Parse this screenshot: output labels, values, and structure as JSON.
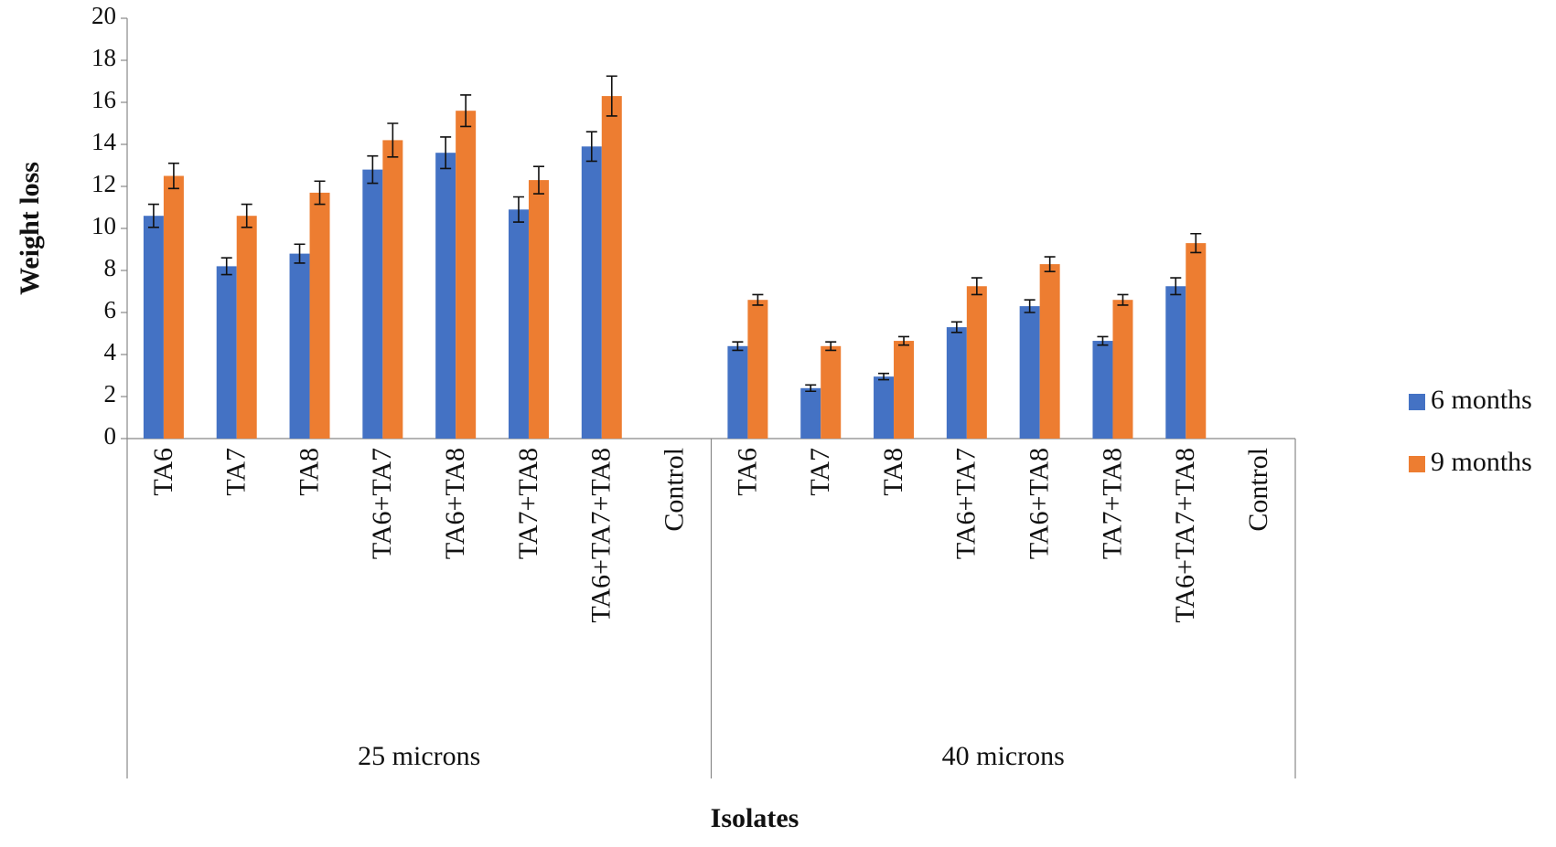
{
  "chart_data": {
    "type": "bar",
    "y_label": "Weight loss",
    "x_label": "Isolates",
    "categories": [
      "TA6",
      "TA7",
      "TA8",
      "TA6+TA7",
      "TA6+TA8",
      "TA7+TA8",
      "TA6+TA7+TA8",
      "Control",
      "TA6",
      "TA7",
      "TA8",
      "TA6+TA7",
      "TA6+TA8",
      "TA7+TA8",
      "TA6+TA7+TA8",
      "Control"
    ],
    "category_groups": [
      "25 microns",
      "40 microns"
    ],
    "series": [
      {
        "name": "6 months",
        "color": "#4472c4",
        "values": [
          10.6,
          8.2,
          8.8,
          12.8,
          13.6,
          10.9,
          13.9,
          0,
          4.4,
          2.4,
          2.95,
          5.3,
          6.3,
          4.65,
          7.25,
          0
        ],
        "errors": [
          0.55,
          0.4,
          0.45,
          0.65,
          0.75,
          0.6,
          0.7,
          0,
          0.2,
          0.15,
          0.15,
          0.25,
          0.3,
          0.2,
          0.4,
          0
        ]
      },
      {
        "name": "9 months",
        "color": "#ed7d31",
        "values": [
          12.5,
          10.6,
          11.7,
          14.2,
          15.6,
          12.3,
          16.3,
          0,
          6.6,
          4.4,
          4.65,
          7.25,
          8.3,
          6.6,
          9.3,
          0
        ],
        "errors": [
          0.6,
          0.55,
          0.55,
          0.8,
          0.75,
          0.65,
          0.95,
          0,
          0.25,
          0.2,
          0.2,
          0.4,
          0.35,
          0.25,
          0.45,
          0
        ]
      }
    ],
    "ylim": [
      0,
      20
    ],
    "yticks": [
      0,
      2,
      4,
      6,
      8,
      10,
      12,
      14,
      16,
      18,
      20
    ],
    "grid": false,
    "legend": "right"
  }
}
